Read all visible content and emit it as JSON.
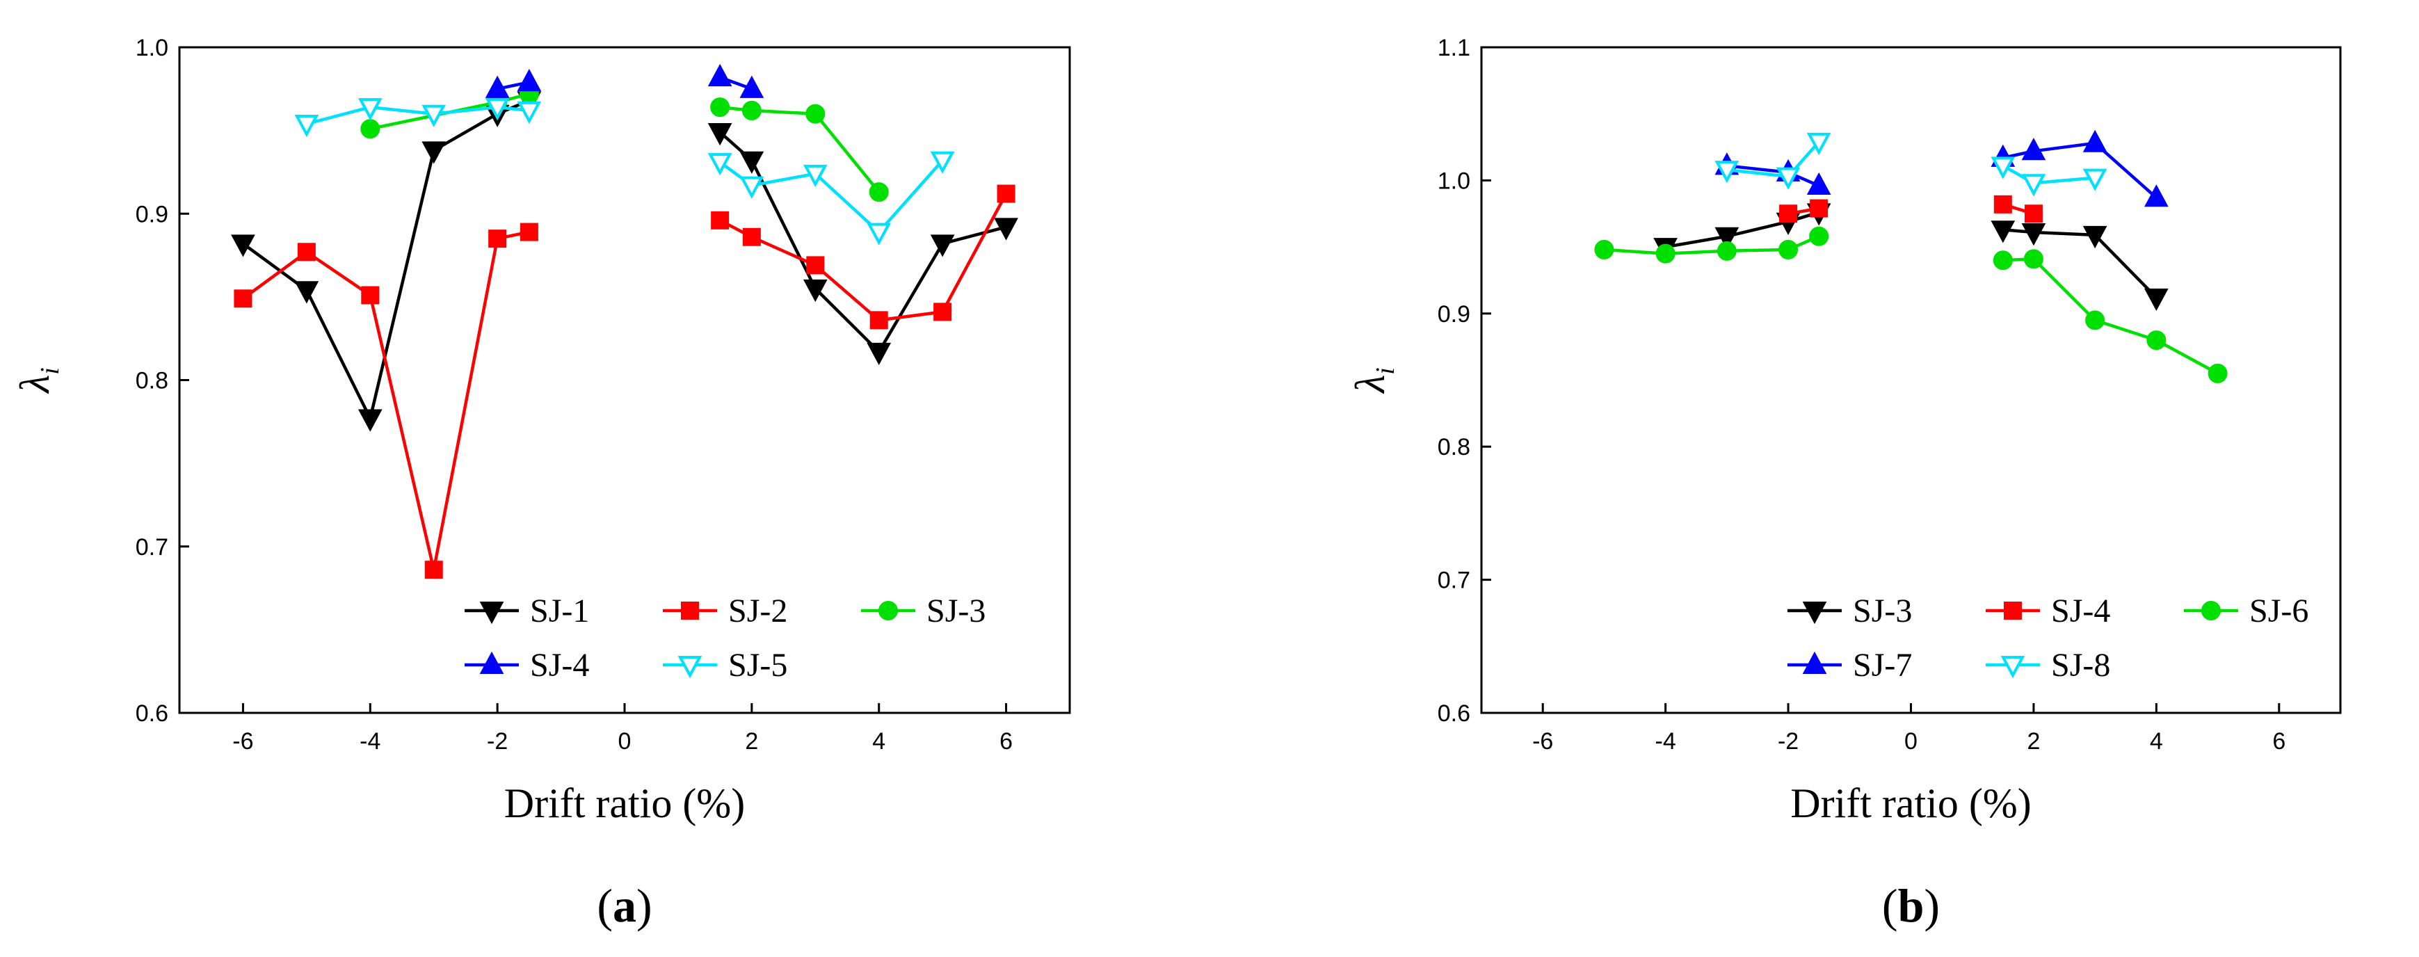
{
  "chart_data": [
    {
      "type": "line",
      "panel_label": {
        "open": "(",
        "letter": "a",
        "close": ")"
      },
      "xlabel": "Drift ratio (%)",
      "ylabel": "λ",
      "ylabel_sub": "i",
      "xlim": [
        -7,
        7
      ],
      "ylim": [
        0.6,
        1.0
      ],
      "xticks": [
        -6,
        -4,
        -2,
        0,
        2,
        4,
        6
      ],
      "yticks": [
        0.6,
        0.7,
        0.8,
        0.9,
        1.0
      ],
      "ytick_decimals": 1,
      "legend_position": "bottom-right",
      "legend_columns": 3,
      "series": [
        {
          "name": "SJ-1",
          "color": "#000000",
          "marker": "triangle-down",
          "filled": true,
          "segments": [
            [
              [
                -6,
                0.882
              ],
              [
                -5,
                0.854
              ],
              [
                -4,
                0.777
              ],
              [
                -3,
                0.938
              ],
              [
                -2,
                0.96
              ],
              [
                -1.5,
                0.968
              ]
            ],
            [
              [
                1.5,
                0.949
              ],
              [
                2,
                0.932
              ],
              [
                3,
                0.855
              ],
              [
                4,
                0.817
              ],
              [
                5,
                0.882
              ],
              [
                6,
                0.892
              ]
            ]
          ]
        },
        {
          "name": "SJ-2",
          "color": "#ff0000",
          "marker": "square",
          "filled": true,
          "segments": [
            [
              [
                -6,
                0.849
              ],
              [
                -5,
                0.877
              ],
              [
                -4,
                0.851
              ],
              [
                -3,
                0.686
              ],
              [
                -2,
                0.885
              ],
              [
                -1.5,
                0.889
              ]
            ],
            [
              [
                1.5,
                0.896
              ],
              [
                2,
                0.886
              ],
              [
                3,
                0.869
              ],
              [
                4,
                0.836
              ],
              [
                5,
                0.841
              ],
              [
                6,
                0.912
              ]
            ]
          ]
        },
        {
          "name": "SJ-3",
          "color": "#00e000",
          "marker": "circle",
          "filled": true,
          "segments": [
            [
              [
                -4,
                0.951
              ],
              [
                -2,
                0.967
              ],
              [
                -1.5,
                0.972
              ]
            ],
            [
              [
                1.5,
                0.964
              ],
              [
                2,
                0.962
              ],
              [
                3,
                0.96
              ],
              [
                4,
                0.913
              ]
            ]
          ]
        },
        {
          "name": "SJ-4",
          "color": "#0000ff",
          "marker": "triangle-up",
          "filled": true,
          "segments": [
            [
              [
                -2,
                0.975
              ],
              [
                -1.5,
                0.979
              ]
            ],
            [
              [
                1.5,
                0.982
              ],
              [
                2,
                0.975
              ]
            ]
          ]
        },
        {
          "name": "SJ-5",
          "color": "#00e0ff",
          "marker": "triangle-down",
          "filled": false,
          "segments": [
            [
              [
                -5,
                0.954
              ],
              [
                -4,
                0.964
              ],
              [
                -3,
                0.96
              ],
              [
                -2,
                0.964
              ],
              [
                -1.5,
                0.962
              ]
            ],
            [
              [
                1.5,
                0.931
              ],
              [
                2,
                0.917
              ],
              [
                3,
                0.924
              ],
              [
                4,
                0.889
              ],
              [
                5,
                0.932
              ]
            ]
          ]
        }
      ]
    },
    {
      "type": "line",
      "panel_label": {
        "open": "(",
        "letter": "b",
        "close": ")"
      },
      "xlabel": "Drift ratio (%)",
      "ylabel": "λ",
      "ylabel_sub": "i",
      "xlim": [
        -7,
        7
      ],
      "ylim": [
        0.6,
        1.1
      ],
      "xticks": [
        -6,
        -4,
        -2,
        0,
        2,
        4,
        6
      ],
      "yticks": [
        0.6,
        0.7,
        0.8,
        0.9,
        1.0,
        1.1
      ],
      "ytick_decimals": 1,
      "legend_position": "bottom-right",
      "legend_columns": 3,
      "series": [
        {
          "name": "SJ-3",
          "color": "#000000",
          "marker": "triangle-down",
          "filled": true,
          "segments": [
            [
              [
                -4,
                0.95
              ],
              [
                -3,
                0.958
              ],
              [
                -2,
                0.969
              ],
              [
                -1.5,
                0.976
              ]
            ],
            [
              [
                1.5,
                0.963
              ],
              [
                2,
                0.961
              ],
              [
                3,
                0.959
              ],
              [
                4,
                0.912
              ]
            ]
          ]
        },
        {
          "name": "SJ-4",
          "color": "#ff0000",
          "marker": "square",
          "filled": true,
          "segments": [
            [
              [
                -2,
                0.975
              ],
              [
                -1.5,
                0.979
              ]
            ],
            [
              [
                1.5,
                0.982
              ],
              [
                2,
                0.975
              ]
            ]
          ]
        },
        {
          "name": "SJ-6",
          "color": "#00e000",
          "marker": "circle",
          "filled": true,
          "segments": [
            [
              [
                -5,
                0.948
              ],
              [
                -4,
                0.945
              ],
              [
                -3,
                0.947
              ],
              [
                -2,
                0.948
              ],
              [
                -1.5,
                0.958
              ]
            ],
            [
              [
                1.5,
                0.94
              ],
              [
                2,
                0.941
              ],
              [
                3,
                0.895
              ],
              [
                4,
                0.88
              ],
              [
                5,
                0.855
              ]
            ]
          ]
        },
        {
          "name": "SJ-7",
          "color": "#0000ff",
          "marker": "triangle-up",
          "filled": true,
          "segments": [
            [
              [
                -3,
                1.011
              ],
              [
                -2,
                1.006
              ],
              [
                -1.5,
                0.996
              ]
            ],
            [
              [
                1.5,
                1.017
              ],
              [
                2,
                1.022
              ],
              [
                3,
                1.028
              ],
              [
                4,
                0.987
              ]
            ]
          ]
        },
        {
          "name": "SJ-8",
          "color": "#00e0ff",
          "marker": "triangle-down",
          "filled": false,
          "segments": [
            [
              [
                -3,
                1.008
              ],
              [
                -2,
                1.003
              ],
              [
                -1.5,
                1.029
              ]
            ],
            [
              [
                1.5,
                1.011
              ],
              [
                2,
                0.998
              ],
              [
                3,
                1.002
              ]
            ]
          ]
        }
      ]
    }
  ]
}
